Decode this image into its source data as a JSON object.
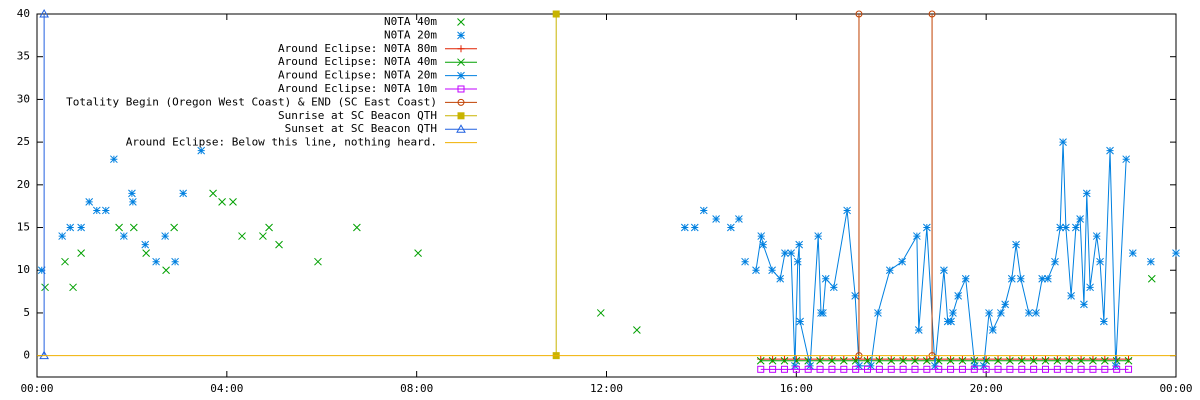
{
  "chart_data": {
    "type": "line",
    "xlim": [
      0,
      24
    ],
    "xticks": [
      {
        "value": 0,
        "label": "00:00"
      },
      {
        "value": 4,
        "label": "04:00"
      },
      {
        "value": 8,
        "label": "08:00"
      },
      {
        "value": 12,
        "label": "12:00"
      },
      {
        "value": 16,
        "label": "16:00"
      },
      {
        "value": 20,
        "label": "20:00"
      },
      {
        "value": 24,
        "label": "00:00"
      }
    ],
    "ylim": [
      -2.5,
      40
    ],
    "yticks": [
      0,
      5,
      10,
      15,
      20,
      25,
      30,
      35,
      40
    ],
    "legend": "top-center",
    "series": [
      {
        "name": "N0TA 40m",
        "color": "#00a000",
        "style": "points",
        "marker": "x",
        "x": [
          0.17,
          0.59,
          0.76,
          0.93,
          1.73,
          2.04,
          2.3,
          2.72,
          2.89,
          3.71,
          3.9,
          4.13,
          4.32,
          4.76,
          4.89,
          5.1,
          5.92,
          6.74,
          8.03,
          11.88,
          12.64,
          23.49
        ],
        "values": [
          8,
          11,
          8,
          12,
          15,
          15,
          12,
          10,
          15,
          19,
          18,
          18,
          14,
          14,
          15,
          13,
          11,
          15,
          12,
          5,
          3,
          9
        ]
      },
      {
        "name": "N0TA 20m",
        "color": "#0080e0",
        "style": "points",
        "marker": "star",
        "x": [
          0.1,
          0.53,
          0.7,
          0.93,
          1.1,
          1.26,
          1.45,
          1.62,
          1.83,
          2.0,
          2.02,
          2.28,
          2.51,
          2.7,
          2.91,
          3.08,
          3.46,
          13.65,
          13.86,
          14.05,
          14.31,
          14.62,
          14.79,
          14.92,
          23.09,
          23.47,
          24.0
        ],
        "values": [
          10,
          14,
          15,
          15,
          18,
          17,
          17,
          23,
          14,
          19,
          18,
          13,
          11,
          14,
          11,
          19,
          24,
          15,
          15,
          17,
          16,
          15,
          16,
          11,
          12,
          11,
          12
        ]
      },
      {
        "name": "Around Eclipse: N0TA 80m",
        "color": "#e02000",
        "style": "linespoints",
        "marker": "plus",
        "x": [
          15.25,
          15.5,
          15.75,
          16,
          16.25,
          16.5,
          16.75,
          17,
          17.25,
          17.5,
          17.75,
          18,
          18.25,
          18.5,
          18.75,
          19,
          19.25,
          19.5,
          19.75,
          20,
          20.25,
          20.5,
          20.75,
          21,
          21.25,
          21.5,
          21.75,
          22,
          22.25,
          22.5,
          22.75,
          23
        ],
        "values": [
          -0.4,
          -0.4,
          -0.4,
          -0.4,
          -0.4,
          -0.4,
          -0.4,
          -0.4,
          -0.4,
          -0.4,
          -0.4,
          -0.4,
          -0.4,
          -0.4,
          -0.4,
          -0.4,
          -0.4,
          -0.4,
          -0.4,
          -0.4,
          -0.4,
          -0.4,
          -0.4,
          -0.4,
          -0.4,
          -0.4,
          -0.4,
          -0.4,
          -0.4,
          -0.4,
          -0.4,
          -0.4
        ]
      },
      {
        "name": "Around Eclipse: N0TA 40m",
        "color": "#00a000",
        "style": "linespoints",
        "marker": "x",
        "x": [
          15.25,
          15.5,
          15.75,
          16,
          16.25,
          16.5,
          16.75,
          17,
          17.25,
          17.5,
          17.75,
          18,
          18.25,
          18.5,
          18.75,
          19,
          19.25,
          19.5,
          19.75,
          20,
          20.25,
          20.5,
          20.75,
          21,
          21.25,
          21.5,
          21.75,
          22,
          22.25,
          22.5,
          22.75,
          23
        ],
        "values": [
          -0.6,
          -0.6,
          -0.6,
          -0.6,
          -0.6,
          -0.6,
          -0.6,
          -0.6,
          -0.6,
          -0.6,
          -0.6,
          -0.6,
          -0.6,
          -0.6,
          -0.6,
          -0.6,
          -0.6,
          -0.6,
          -0.6,
          -0.6,
          -0.6,
          -0.6,
          -0.6,
          -0.6,
          -0.6,
          -0.6,
          -0.6,
          -0.6,
          -0.6,
          -0.6,
          -0.6,
          -0.6
        ]
      },
      {
        "name": "Around Eclipse: N0TA 20m",
        "color": "#0080e0",
        "style": "linespoints",
        "marker": "star",
        "x": [
          15.15,
          15.26,
          15.3,
          15.49,
          15.66,
          15.76,
          15.89,
          15.97,
          16.03,
          16.06,
          16.08,
          16.29,
          16.46,
          16.52,
          16.56,
          16.62,
          16.79,
          17.07,
          17.24,
          17.32,
          17.57,
          17.72,
          17.97,
          18.23,
          18.54,
          18.58,
          18.75,
          18.92,
          19.11,
          19.19,
          19.26,
          19.3,
          19.41,
          19.57,
          19.76,
          19.95,
          20.06,
          20.14,
          20.31,
          20.4,
          20.54,
          20.63,
          20.73,
          20.9,
          21.05,
          21.18,
          21.3,
          21.45,
          21.56,
          21.62,
          21.68,
          21.79,
          21.89,
          21.98,
          22.06,
          22.12,
          22.19,
          22.33,
          22.4,
          22.48,
          22.61,
          22.73,
          22.95
        ],
        "values": [
          10,
          14,
          13,
          10,
          9,
          12,
          12,
          -1.2,
          11,
          13,
          4,
          -1.2,
          14,
          5,
          5,
          9,
          8,
          17,
          7,
          -1.2,
          -1.2,
          5,
          10,
          11,
          14,
          3,
          15,
          -1.2,
          10,
          4,
          4,
          5,
          7,
          9,
          -1.2,
          -1.2,
          5,
          3,
          5,
          6,
          9,
          13,
          9,
          5,
          5,
          9,
          9,
          11,
          15,
          25,
          15,
          7,
          15,
          16,
          6,
          19,
          8,
          14,
          11,
          4,
          24,
          -1.2,
          23
        ]
      },
      {
        "name": "Around Eclipse: N0TA 10m",
        "color": "#c000ff",
        "style": "linespoints",
        "marker": "square",
        "x": [
          15.25,
          15.5,
          15.75,
          16,
          16.25,
          16.5,
          16.75,
          17,
          17.25,
          17.5,
          17.75,
          18,
          18.25,
          18.5,
          18.75,
          19,
          19.25,
          19.5,
          19.75,
          20,
          20.25,
          20.5,
          20.75,
          21,
          21.25,
          21.5,
          21.75,
          22,
          22.25,
          22.5,
          22.75,
          23
        ],
        "values": [
          -1.6,
          -1.6,
          -1.6,
          -1.6,
          -1.6,
          -1.6,
          -1.6,
          -1.6,
          -1.6,
          -1.6,
          -1.6,
          -1.6,
          -1.6,
          -1.6,
          -1.6,
          -1.6,
          -1.6,
          -1.6,
          -1.6,
          -1.6,
          -1.6,
          -1.6,
          -1.6,
          -1.6,
          -1.6,
          -1.6,
          -1.6,
          -1.6,
          -1.6,
          -1.6,
          -1.6,
          -1.6
        ]
      },
      {
        "name": "Totality Begin (Oregon West Coast) & END (SC East Coast)",
        "color": "#c04000",
        "style": "linespoints",
        "marker": "circle",
        "x": [
          17.32,
          17.32,
          null,
          18.86,
          18.86
        ],
        "values": [
          0,
          40,
          null,
          0,
          40
        ]
      },
      {
        "name": "Sunrise at SC Beacon QTH",
        "color": "#c8b400",
        "style": "linespoints",
        "marker": "filled-square",
        "x": [
          10.94,
          10.94
        ],
        "values": [
          0,
          40
        ]
      },
      {
        "name": "Sunset at SC Beacon QTH",
        "color": "#2060e0",
        "style": "linespoints",
        "marker": "triangle",
        "x": [
          0.15,
          0.15
        ],
        "values": [
          0,
          40
        ]
      },
      {
        "name": "Around Eclipse: Below this line, nothing heard.",
        "color": "#f0b000",
        "style": "lines",
        "marker": null,
        "x": [
          0,
          24
        ],
        "values": [
          0,
          0
        ]
      }
    ]
  }
}
